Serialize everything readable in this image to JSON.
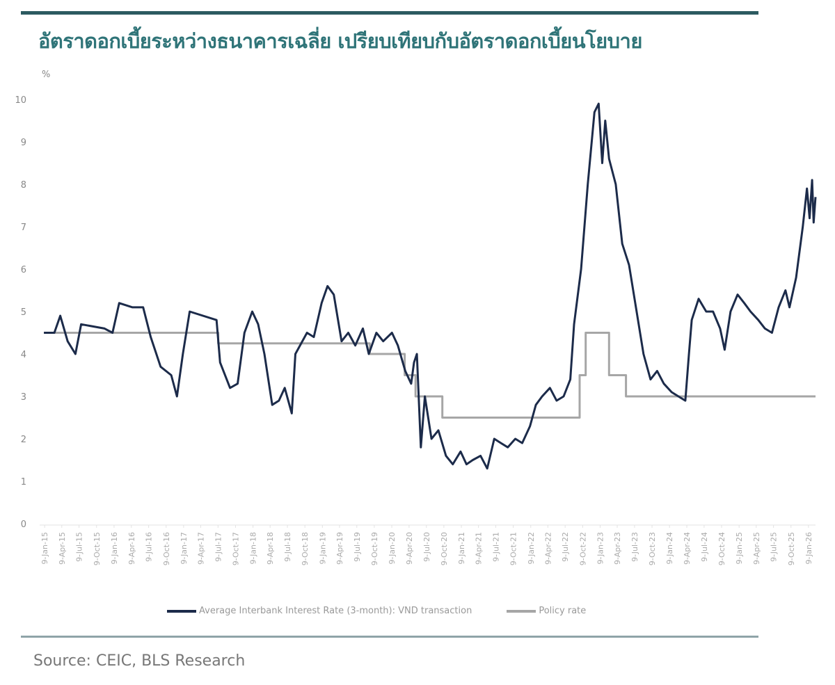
{
  "header": {
    "title": "อัตราดอกเบี้ยระหว่างธนาคารเฉลี่ย เปรียบเทียบกับอัตราดอกเบี้ยนโยบาย"
  },
  "footer": {
    "source": "Source: CEIC, BLS Research"
  },
  "chart_data": {
    "type": "line",
    "title": "อัตราดอกเบี้ยระหว่างธนาคารเฉลี่ย เปรียบเทียบกับอัตราดอกเบี้ยนโยบาย",
    "ylabel": "%",
    "ylim": [
      0,
      10
    ],
    "yticks": [
      "0",
      "1",
      "2",
      "3",
      "4",
      "5",
      "6",
      "7",
      "8",
      "9",
      "10"
    ],
    "xlim": [
      "2015-01-01",
      "2026-02-15"
    ],
    "xticks": [
      "9-Jan-15",
      "9-Apr-15",
      "9-Jul-15",
      "9-Oct-15",
      "9-Jan-16",
      "9-Apr-16",
      "9-Jul-16",
      "9-Oct-16",
      "9-Jan-17",
      "9-Apr-17",
      "9-Jul-17",
      "9-Oct-17",
      "9-Jan-18",
      "9-Apr-18",
      "9-Jul-18",
      "9-Oct-18",
      "9-Jan-19",
      "9-Apr-19",
      "9-Jul-19",
      "9-Oct-19",
      "9-Jan-20",
      "9-Apr-20",
      "9-Jul-20",
      "9-Oct-20",
      "9-Jan-21",
      "9-Apr-21",
      "9-Jul-21",
      "9-Oct-21",
      "9-Jan-22",
      "9-Apr-22",
      "9-Jul-22",
      "9-Oct-22",
      "9-Jan-23",
      "9-Apr-23",
      "9-Jul-23",
      "9-Oct-23",
      "9-Jan-24",
      "9-Apr-24",
      "9-Jul-24",
      "9-Oct-24",
      "9-Jan-25",
      "9-Apr-25",
      "9-Jul-25",
      "9-Oct-25",
      "9-Jan-26"
    ],
    "grid": false,
    "legend_position": "bottom",
    "series": [
      {
        "name": "Average Interbank Interest Rate (3-month): VND transaction",
        "color": "#1c2b4a",
        "points": [
          [
            "2015-01-05",
            4.5
          ],
          [
            "2015-03-01",
            4.5
          ],
          [
            "2015-04-01",
            4.9
          ],
          [
            "2015-05-10",
            4.3
          ],
          [
            "2015-06-20",
            4.0
          ],
          [
            "2015-07-20",
            4.7
          ],
          [
            "2015-11-20",
            4.6
          ],
          [
            "2016-01-01",
            4.5
          ],
          [
            "2016-02-05",
            5.2
          ],
          [
            "2016-04-15",
            5.1
          ],
          [
            "2016-06-10",
            5.1
          ],
          [
            "2016-07-20",
            4.4
          ],
          [
            "2016-09-10",
            3.7
          ],
          [
            "2016-11-05",
            3.5
          ],
          [
            "2016-12-05",
            3.0
          ],
          [
            "2017-01-05",
            4.0
          ],
          [
            "2017-02-10",
            5.0
          ],
          [
            "2017-07-01",
            4.8
          ],
          [
            "2017-07-20",
            3.8
          ],
          [
            "2017-09-10",
            3.2
          ],
          [
            "2017-10-20",
            3.3
          ],
          [
            "2017-11-25",
            4.5
          ],
          [
            "2018-01-05",
            5.0
          ],
          [
            "2018-02-05",
            4.7
          ],
          [
            "2018-03-10",
            4.0
          ],
          [
            "2018-04-20",
            2.8
          ],
          [
            "2018-05-25",
            2.9
          ],
          [
            "2018-06-25",
            3.2
          ],
          [
            "2018-08-01",
            2.6
          ],
          [
            "2018-08-20",
            4.0
          ],
          [
            "2018-10-20",
            4.5
          ],
          [
            "2018-11-25",
            4.4
          ],
          [
            "2019-01-05",
            5.2
          ],
          [
            "2019-02-05",
            5.6
          ],
          [
            "2019-03-10",
            5.4
          ],
          [
            "2019-04-20",
            4.3
          ],
          [
            "2019-05-25",
            4.5
          ],
          [
            "2019-07-01",
            4.2
          ],
          [
            "2019-08-10",
            4.6
          ],
          [
            "2019-09-10",
            4.0
          ],
          [
            "2019-10-20",
            4.5
          ],
          [
            "2019-11-25",
            4.3
          ],
          [
            "2020-01-10",
            4.5
          ],
          [
            "2020-02-10",
            4.2
          ],
          [
            "2020-03-20",
            3.6
          ],
          [
            "2020-04-20",
            3.3
          ],
          [
            "2020-05-05",
            3.8
          ],
          [
            "2020-05-20",
            4.0
          ],
          [
            "2020-06-10",
            1.8
          ],
          [
            "2020-07-01",
            3.0
          ],
          [
            "2020-08-05",
            2.0
          ],
          [
            "2020-09-10",
            2.2
          ],
          [
            "2020-10-20",
            1.6
          ],
          [
            "2020-11-25",
            1.4
          ],
          [
            "2021-01-05",
            1.7
          ],
          [
            "2021-02-05",
            1.4
          ],
          [
            "2021-03-10",
            1.5
          ],
          [
            "2021-04-20",
            1.6
          ],
          [
            "2021-05-25",
            1.3
          ],
          [
            "2021-07-01",
            2.0
          ],
          [
            "2021-08-05",
            1.9
          ],
          [
            "2021-09-10",
            1.8
          ],
          [
            "2021-10-20",
            2.0
          ],
          [
            "2021-11-25",
            1.9
          ],
          [
            "2022-01-05",
            2.3
          ],
          [
            "2022-02-05",
            2.8
          ],
          [
            "2022-03-10",
            3.0
          ],
          [
            "2022-04-20",
            3.2
          ],
          [
            "2022-05-25",
            2.9
          ],
          [
            "2022-07-01",
            3.0
          ],
          [
            "2022-08-05",
            3.4
          ],
          [
            "2022-08-25",
            4.7
          ],
          [
            "2022-10-01",
            6.0
          ],
          [
            "2022-11-05",
            8.0
          ],
          [
            "2022-12-10",
            9.7
          ],
          [
            "2023-01-01",
            9.9
          ],
          [
            "2023-01-20",
            8.5
          ],
          [
            "2023-02-05",
            9.5
          ],
          [
            "2023-02-25",
            8.6
          ],
          [
            "2023-04-01",
            8.0
          ],
          [
            "2023-05-05",
            6.6
          ],
          [
            "2023-06-10",
            6.1
          ],
          [
            "2023-07-20",
            5.0
          ],
          [
            "2023-08-25",
            4.0
          ],
          [
            "2023-10-01",
            3.4
          ],
          [
            "2023-11-05",
            3.6
          ],
          [
            "2023-12-10",
            3.3
          ],
          [
            "2024-01-20",
            3.1
          ],
          [
            "2024-02-25",
            3.0
          ],
          [
            "2024-04-01",
            2.9
          ],
          [
            "2024-04-20",
            4.0
          ],
          [
            "2024-05-05",
            4.8
          ],
          [
            "2024-06-10",
            5.3
          ],
          [
            "2024-07-20",
            5.0
          ],
          [
            "2024-08-25",
            5.0
          ],
          [
            "2024-10-01",
            4.6
          ],
          [
            "2024-10-25",
            4.1
          ],
          [
            "2024-11-25",
            5.0
          ],
          [
            "2025-01-01",
            5.4
          ],
          [
            "2025-02-05",
            5.2
          ],
          [
            "2025-03-10",
            5.0
          ],
          [
            "2025-04-20",
            4.8
          ],
          [
            "2025-05-25",
            4.6
          ],
          [
            "2025-07-01",
            4.5
          ],
          [
            "2025-08-05",
            5.1
          ],
          [
            "2025-09-10",
            5.5
          ],
          [
            "2025-10-01",
            5.1
          ],
          [
            "2025-11-05",
            5.8
          ],
          [
            "2025-12-10",
            7.0
          ],
          [
            "2026-01-01",
            7.9
          ],
          [
            "2026-01-15",
            7.2
          ],
          [
            "2026-01-28",
            8.1
          ],
          [
            "2026-02-05",
            7.1
          ],
          [
            "2026-02-15",
            7.7
          ]
        ]
      },
      {
        "name": "Policy rate",
        "color": "#a6a6a6",
        "points": [
          [
            "2015-01-05",
            4.5
          ],
          [
            "2017-07-10",
            4.5
          ],
          [
            "2017-07-10",
            4.25
          ],
          [
            "2019-09-15",
            4.25
          ],
          [
            "2019-09-15",
            4.0
          ],
          [
            "2020-03-17",
            4.0
          ],
          [
            "2020-03-17",
            3.5
          ],
          [
            "2020-05-13",
            3.5
          ],
          [
            "2020-05-13",
            3.0
          ],
          [
            "2020-10-01",
            3.0
          ],
          [
            "2020-10-01",
            2.5
          ],
          [
            "2022-09-23",
            2.5
          ],
          [
            "2022-09-23",
            3.5
          ],
          [
            "2022-10-25",
            3.5
          ],
          [
            "2022-10-25",
            4.5
          ],
          [
            "2023-02-25",
            4.5
          ],
          [
            "2023-02-25",
            3.5
          ],
          [
            "2023-05-25",
            3.5
          ],
          [
            "2023-05-25",
            3.0
          ],
          [
            "2026-02-15",
            3.0
          ]
        ]
      }
    ]
  }
}
